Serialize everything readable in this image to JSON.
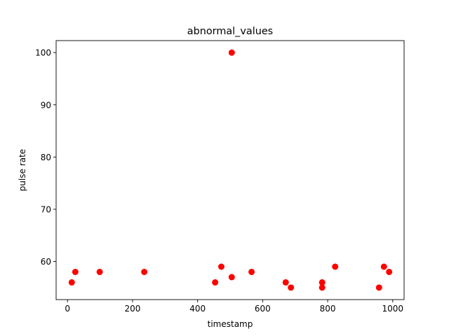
{
  "chart_data": {
    "type": "scatter",
    "title": "abnormal_values",
    "xlabel": "timestamp",
    "ylabel": "pulse rate",
    "xlim": [
      -35,
      1035
    ],
    "ylim": [
      52.7,
      102.3
    ],
    "xticks": [
      0,
      200,
      400,
      600,
      800,
      1000
    ],
    "yticks": [
      60,
      70,
      80,
      90,
      100
    ],
    "grid": false,
    "marker_color": "#ff0000",
    "points": [
      {
        "x": 13,
        "y": 56
      },
      {
        "x": 24,
        "y": 58
      },
      {
        "x": 99,
        "y": 58
      },
      {
        "x": 236,
        "y": 58
      },
      {
        "x": 454,
        "y": 56
      },
      {
        "x": 473,
        "y": 59
      },
      {
        "x": 505,
        "y": 57
      },
      {
        "x": 505,
        "y": 100
      },
      {
        "x": 566,
        "y": 58
      },
      {
        "x": 671,
        "y": 56
      },
      {
        "x": 687,
        "y": 55
      },
      {
        "x": 783,
        "y": 55
      },
      {
        "x": 783,
        "y": 56
      },
      {
        "x": 823,
        "y": 59
      },
      {
        "x": 958,
        "y": 55
      },
      {
        "x": 973,
        "y": 59
      },
      {
        "x": 989,
        "y": 58
      }
    ]
  }
}
